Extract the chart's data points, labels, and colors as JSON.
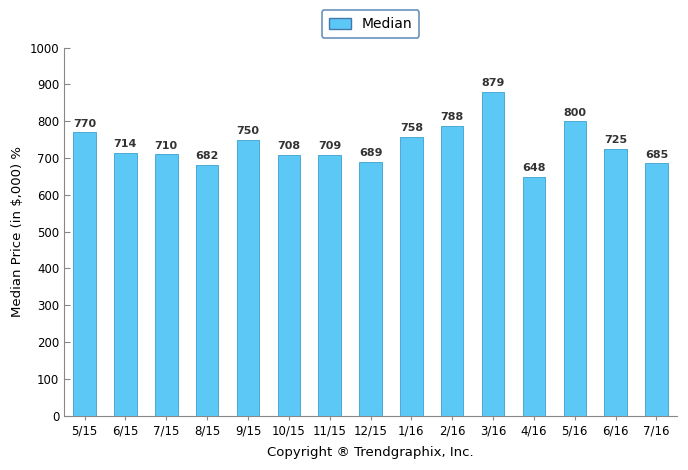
{
  "categories": [
    "5/15",
    "6/15",
    "7/15",
    "8/15",
    "9/15",
    "10/15",
    "11/15",
    "12/15",
    "1/16",
    "2/16",
    "3/16",
    "4/16",
    "5/16",
    "6/16",
    "7/16"
  ],
  "values": [
    770,
    714,
    710,
    682,
    750,
    708,
    709,
    689,
    758,
    788,
    879,
    648,
    800,
    725,
    685
  ],
  "bar_color": "#5BC8F5",
  "bar_edge_color": "#4AAAD4",
  "ylim": [
    0,
    1000
  ],
  "yticks": [
    0,
    100,
    200,
    300,
    400,
    500,
    600,
    700,
    800,
    900,
    1000
  ],
  "ylabel": "Median Price (in $,000) %",
  "xlabel": "Copyright ® Trendgraphix, Inc.",
  "legend_label": "Median",
  "legend_facecolor": "#5BC8F5",
  "legend_edgecolor": "#4477AA",
  "bar_width": 0.55,
  "annotation_fontsize": 8,
  "annotation_color": "#333333",
  "axis_label_fontsize": 9.5,
  "tick_fontsize": 8.5,
  "legend_fontsize": 10,
  "background_color": "#ffffff",
  "spine_color": "#888888"
}
